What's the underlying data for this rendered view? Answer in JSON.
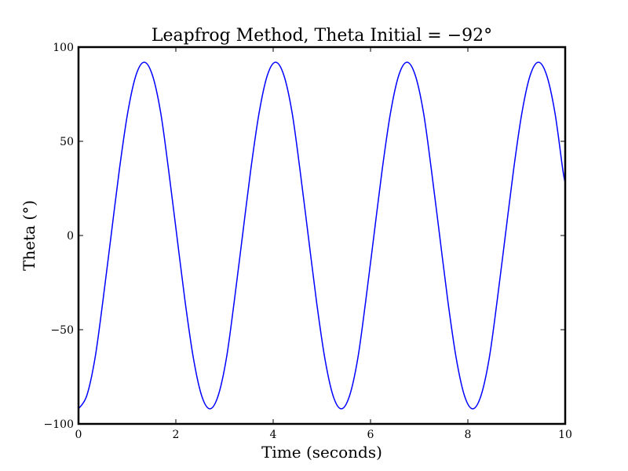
{
  "chart_data": {
    "type": "line",
    "title": "Leapfrog Method, Theta Initial = −92°",
    "xlabel": "Time (seconds)",
    "ylabel": "Theta (°)",
    "xlim": [
      0,
      10
    ],
    "ylim": [
      -100,
      100
    ],
    "x_ticks": [
      0,
      2,
      4,
      6,
      8,
      10
    ],
    "y_ticks": [
      -100,
      -50,
      0,
      50,
      100
    ],
    "x_tick_labels": [
      "0",
      "2",
      "4",
      "6",
      "8",
      "10"
    ],
    "y_tick_labels": [
      "−100",
      "−50",
      "0",
      "50",
      "100"
    ],
    "grid": false,
    "series": [
      {
        "color": "#0000ff",
        "x": [
          0,
          0.17,
          0.34,
          0.5,
          0.67,
          0.84,
          1.01,
          1.18,
          1.35,
          1.52,
          1.69,
          1.85,
          2.02,
          2.19,
          2.36,
          2.53,
          2.7,
          2.87,
          3.04,
          3.2,
          3.37,
          3.54,
          3.71,
          3.88,
          4.05,
          4.22,
          4.39,
          4.55,
          4.72,
          4.89,
          5.06,
          5.23,
          5.4,
          5.57,
          5.74,
          5.9,
          6.07,
          6.24,
          6.41,
          6.58,
          6.75,
          6.92,
          7.09,
          7.25,
          7.42,
          7.59,
          7.76,
          7.93,
          8.1,
          8.27,
          8.44,
          8.6,
          8.77,
          8.94,
          9.11,
          9.28,
          9.45,
          9.62,
          9.79,
          9.95,
          10
        ],
        "y": [
          -92,
          -85,
          -65,
          -35,
          0,
          35,
          65,
          85,
          92,
          85,
          65,
          35,
          0,
          -35,
          -65,
          -85,
          -92,
          -85,
          -65,
          -35,
          0,
          35,
          65,
          85,
          92,
          85,
          65,
          35,
          0,
          -35,
          -65,
          -85,
          -92,
          -85,
          -65,
          -35,
          0,
          35,
          65,
          85,
          92,
          85,
          65,
          35,
          0,
          -35,
          -65,
          -85,
          -92,
          -85,
          -65,
          -35,
          0,
          35,
          65,
          85,
          92,
          85,
          65,
          35,
          28
        ]
      }
    ]
  }
}
